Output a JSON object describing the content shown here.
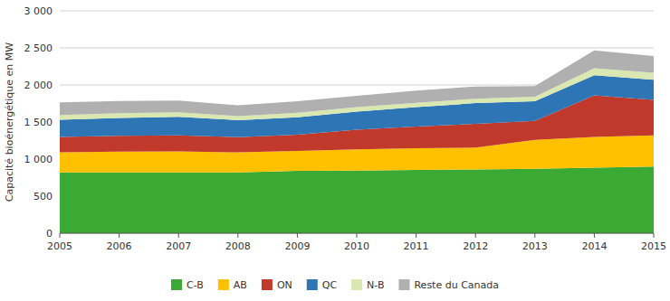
{
  "chart_data": {
    "type": "area",
    "stacked": true,
    "ylabel": "Capacité bioénergétique en MW",
    "x": [
      2005,
      2006,
      2007,
      2008,
      2009,
      2010,
      2011,
      2012,
      2013,
      2014,
      2015
    ],
    "xlim": [
      2005,
      2015
    ],
    "xticks": [
      2005,
      2006,
      2007,
      2008,
      2009,
      2010,
      2011,
      2012,
      2013,
      2014,
      2015
    ],
    "ylim": [
      0,
      3000
    ],
    "yticks": [
      0,
      500,
      {
        "value": 1000,
        "label": "1 000"
      },
      {
        "value": 1500,
        "label": "1 500"
      },
      {
        "value": 2000,
        "label": "2 000"
      },
      {
        "value": 2500,
        "label": "2 500"
      },
      {
        "value": 3000,
        "label": "3 000"
      }
    ],
    "grid": true,
    "legend": "bottom",
    "series": [
      {
        "name": "C-B",
        "color": "#3aaa35",
        "values": [
          820,
          820,
          820,
          820,
          840,
          845,
          855,
          860,
          870,
          885,
          900
        ]
      },
      {
        "name": "AB",
        "color": "#ffc000",
        "values": [
          270,
          280,
          285,
          270,
          270,
          285,
          290,
          295,
          390,
          415,
          420
        ]
      },
      {
        "name": "ON",
        "color": "#c0392b",
        "values": [
          210,
          215,
          215,
          205,
          220,
          265,
          295,
          320,
          255,
          560,
          480
        ]
      },
      {
        "name": "QC",
        "color": "#2e75b6",
        "values": [
          230,
          240,
          250,
          230,
          235,
          245,
          260,
          280,
          265,
          270,
          270
        ]
      },
      {
        "name": "N-B",
        "color": "#d9e8b0",
        "values": [
          65,
          65,
          60,
          55,
          60,
          60,
          60,
          60,
          60,
          95,
          95
        ]
      },
      {
        "name": "Reste du Canada",
        "color": "#b0b0b0",
        "values": [
          170,
          165,
          160,
          145,
          155,
          155,
          165,
          165,
          145,
          240,
          225
        ]
      }
    ]
  }
}
